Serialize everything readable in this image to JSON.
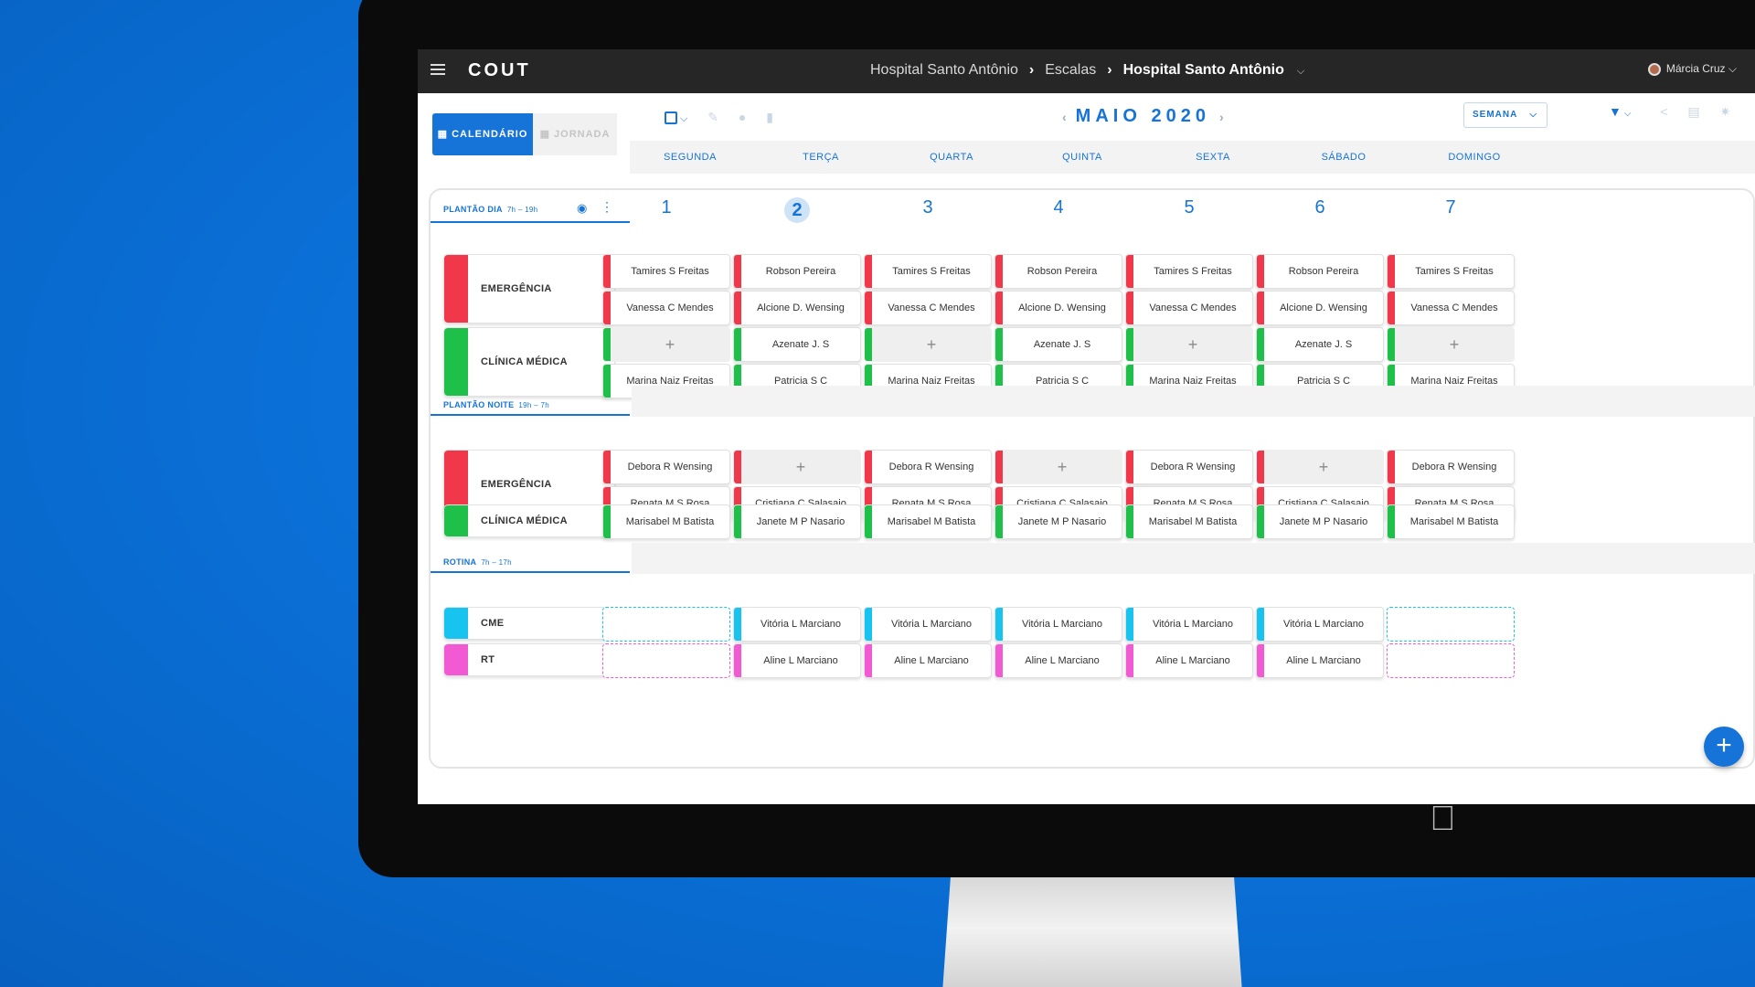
{
  "colors": {
    "accent": "#1673d8",
    "red": "#f0384a",
    "green": "#1fc04a",
    "cyan": "#17c3ef",
    "pink": "#f25ad3"
  },
  "topbar": {
    "logo": "COUT",
    "breadcrumb": [
      "Hospital Santo Antônio",
      "Escalas"
    ],
    "current": "Hospital Santo Antônio",
    "user": "Márcia Cruz"
  },
  "view_tabs": {
    "calendar": "CALENDÁRIO",
    "journey": "JORNADA"
  },
  "calendar": {
    "month_label": "MAIO 2020",
    "range": "SEMANA",
    "days": [
      "SEGUNDA",
      "TERÇA",
      "QUARTA",
      "QUINTA",
      "SEXTA",
      "SÁBADO",
      "DOMINGO"
    ],
    "dates": [
      "1",
      "2",
      "3",
      "4",
      "5",
      "6",
      "7"
    ],
    "today_index": 1
  },
  "sections": [
    {
      "label": "PLANTÃO DIA",
      "time": "7h – 19h",
      "depts": [
        {
          "name": "EMERGÊNCIA",
          "color": "red",
          "rows": [
            [
              "Tamires S Freitas",
              "Robson Pereira",
              "Tamires S Freitas",
              "Robson Pereira",
              "Tamires S Freitas",
              "Robson Pereira",
              "Tamires S Freitas"
            ],
            [
              "Vanessa C Mendes",
              "Alcione D. Wensing",
              "Vanessa C Mendes",
              "Alcione D. Wensing",
              "Vanessa C Mendes",
              "Alcione D. Wensing",
              "Vanessa C Mendes"
            ]
          ]
        },
        {
          "name": "CLÍNICA MÉDICA",
          "color": "green",
          "rows": [
            [
              "+",
              "Azenate J. S",
              "+",
              "Azenate J. S",
              "+",
              "Azenate J. S",
              "+"
            ],
            [
              "Marina Naiz Freitas",
              "Patricia S C",
              "Marina Naiz Freitas",
              "Patricia S C",
              "Marina Naiz Freitas",
              "Patricia S C",
              "Marina Naiz Freitas"
            ]
          ]
        }
      ]
    },
    {
      "label": "PLANTÃO NOITE",
      "time": "19h – 7h",
      "depts": [
        {
          "name": "EMERGÊNCIA",
          "color": "red",
          "rows": [
            [
              "Debora R Wensing",
              "+",
              "Debora R Wensing",
              "+",
              "Debora R Wensing",
              "+",
              "Debora R Wensing"
            ],
            [
              "Renata M S Rosa",
              "Cristiana C Salasaio",
              "Renata M S Rosa",
              "Cristiana C Salasaio",
              "Renata M S Rosa",
              "Cristiana C Salasaio",
              "Renata M S Rosa"
            ]
          ]
        },
        {
          "name": "CLÍNICA MÉDICA",
          "color": "green",
          "rows": [
            [
              "Marisabel M Batista",
              "Janete M P Nasario",
              "Marisabel M Batista",
              "Janete M P Nasario",
              "Marisabel M Batista",
              "Janete M P Nasario",
              "Marisabel M Batista"
            ]
          ]
        }
      ]
    },
    {
      "label": "ROTINA",
      "time": "7h – 17h",
      "depts": [
        {
          "name": "CME",
          "color": "cyan",
          "rows": [
            [
              "",
              "Vitória L Marciano",
              "Vitória L Marciano",
              "Vitória L Marciano",
              "Vitória L Marciano",
              "Vitória L Marciano",
              ""
            ]
          ]
        },
        {
          "name": "RT",
          "color": "pink",
          "rows": [
            [
              "",
              "Aline L Marciano",
              "Aline L Marciano",
              "Aline L Marciano",
              "Aline L Marciano",
              "Aline L Marciano",
              ""
            ]
          ]
        }
      ]
    }
  ],
  "fab": "+",
  "icons": [
    "menu-icon",
    "chevron-right-icon",
    "chevron-down-icon",
    "calendar-icon",
    "grid-icon",
    "select-icon",
    "edit-icon",
    "user-icon",
    "trash-icon",
    "chevron-left-icon",
    "filter-icon",
    "share-icon",
    "print-icon",
    "settings-icon",
    "eye-icon",
    "more-vertical-icon",
    "plus-icon",
    "apple-icon"
  ]
}
